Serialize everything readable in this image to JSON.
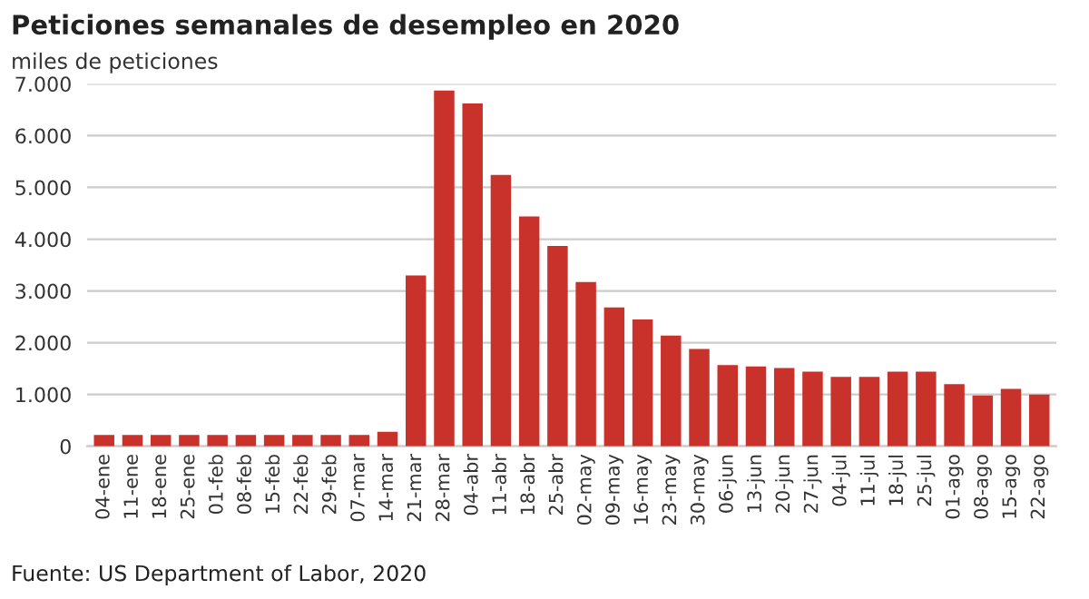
{
  "chart_data": {
    "type": "bar",
    "title": "Peticiones semanales de desempleo en 2020",
    "subtitle": "miles de peticiones",
    "categories": [
      "04-ene",
      "11-ene",
      "18-ene",
      "25-ene",
      "01-feb",
      "08-feb",
      "15-feb",
      "22-feb",
      "29-feb",
      "07-mar",
      "14-mar",
      "21-mar",
      "28-mar",
      "04-abr",
      "11-abr",
      "18-abr",
      "25-abr",
      "02-may",
      "09-may",
      "16-may",
      "23-may",
      "30-may",
      "06-jun",
      "13-jun",
      "20-jun",
      "27-jun",
      "04-jul",
      "11-jul",
      "18-jul",
      "25-jul",
      "01-ago",
      "08-ago",
      "15-ago",
      "22-ago"
    ],
    "values": [
      220,
      220,
      220,
      220,
      220,
      220,
      220,
      220,
      220,
      220,
      280,
      3300,
      6870,
      6620,
      5240,
      4440,
      3870,
      3170,
      2680,
      2450,
      2140,
      1880,
      1570,
      1540,
      1510,
      1440,
      1340,
      1340,
      1440,
      1440,
      1200,
      980,
      1110,
      1000
    ],
    "color": "#c8322a",
    "ylim": [
      0,
      7000
    ],
    "yticks": [
      {
        "value": 0,
        "label": "0"
      },
      {
        "value": 1000,
        "label": "1.000"
      },
      {
        "value": 2000,
        "label": "2.000"
      },
      {
        "value": 3000,
        "label": "3.000"
      },
      {
        "value": 4000,
        "label": "4.000"
      },
      {
        "value": 5000,
        "label": "5.000"
      },
      {
        "value": 6000,
        "label": "6.000"
      },
      {
        "value": 7000,
        "label": "7.000"
      }
    ],
    "grid": "y",
    "annotations": [
      "Fuente: US Department of Labor, 2020"
    ]
  }
}
